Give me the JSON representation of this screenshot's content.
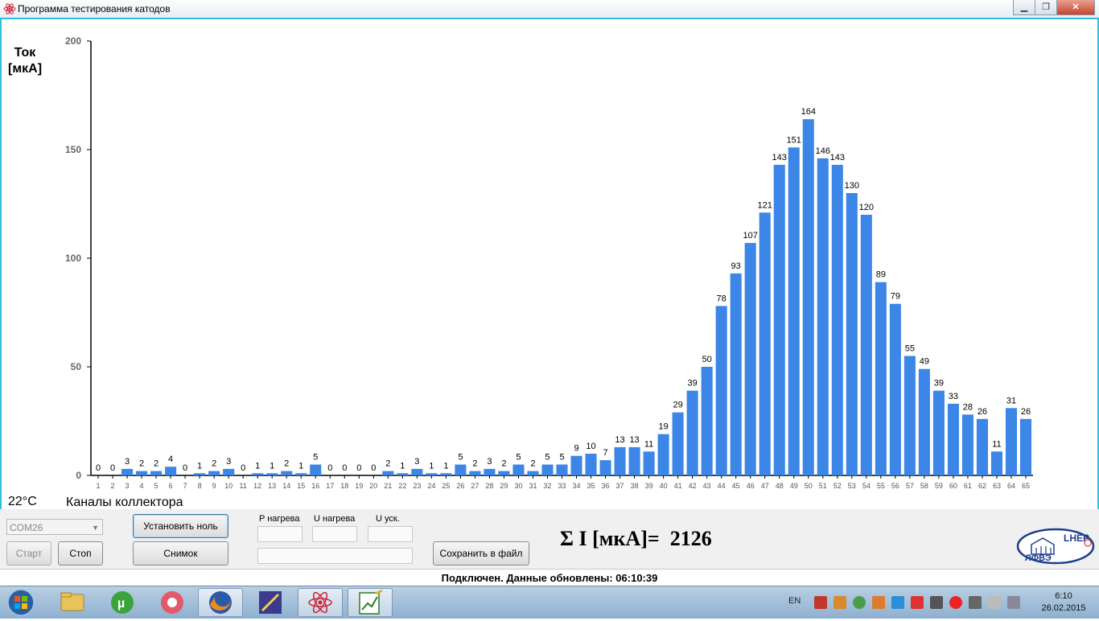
{
  "window": {
    "title": "Программа тестирования катодов",
    "min_label": "▁",
    "max_label": "❐",
    "close_label": "✕"
  },
  "chart_labels": {
    "y_label_line1": "Ток",
    "y_label_line2": "[мкА]",
    "x_label": "Каналы коллектора",
    "temperature": "22°C"
  },
  "chart_data": {
    "type": "bar",
    "ylabel": "Ток [мкА]",
    "xlabel": "Каналы коллектора",
    "ylim": [
      0,
      200
    ],
    "yticks": [
      0,
      50,
      100,
      150,
      200
    ],
    "grid": false,
    "bar_color": "#3b86e6",
    "categories": [
      "1",
      "2",
      "3",
      "4",
      "5",
      "6",
      "7",
      "8",
      "9",
      "10",
      "11",
      "12",
      "13",
      "14",
      "15",
      "16",
      "17",
      "18",
      "19",
      "20",
      "21",
      "22",
      "23",
      "24",
      "25",
      "26",
      "27",
      "28",
      "29",
      "30",
      "31",
      "32",
      "33",
      "34",
      "35",
      "36",
      "37",
      "38",
      "39",
      "40",
      "41",
      "42",
      "43",
      "44",
      "45",
      "46",
      "47",
      "48",
      "49",
      "50",
      "51",
      "52",
      "53",
      "54",
      "55",
      "56",
      "57",
      "58",
      "59",
      "60",
      "61",
      "62",
      "63",
      "64",
      "65"
    ],
    "values": [
      0,
      0,
      3,
      2,
      2,
      4,
      0,
      1,
      2,
      3,
      0,
      1,
      1,
      2,
      1,
      5,
      0,
      0,
      0,
      0,
      2,
      1,
      3,
      1,
      1,
      5,
      2,
      3,
      2,
      5,
      2,
      5,
      5,
      9,
      10,
      7,
      13,
      13,
      11,
      19,
      29,
      39,
      50,
      78,
      93,
      107,
      121,
      143,
      151,
      164,
      146,
      143,
      130,
      120,
      89,
      79,
      55,
      49,
      39,
      33,
      28,
      26,
      11,
      31,
      26
    ]
  },
  "controls": {
    "port_value": "COM26",
    "start_label": "Старт",
    "stop_label": "Стоп",
    "set_zero_label": "Установить ноль",
    "snapshot_label": "Снимок",
    "p_heat_label": "P нагрева",
    "u_heat_label": "U нагрева",
    "u_acc_label": "U уск.",
    "save_label": "Сохранить в файл",
    "sum_text": "Σ I [мкА]=  2126"
  },
  "logo": {
    "top_text": "LHEP",
    "bottom_text": "ЛФВЭ"
  },
  "status": {
    "text": "Подключен. Данные обновлены:  06:10:39"
  },
  "taskbar": {
    "lang": "EN",
    "time": "6:10",
    "date": "26.02.2015",
    "apps": [
      "explorer-icon",
      "utorrent-icon",
      "itunes-icon",
      "firefox-icon",
      "editor-icon",
      "cathode-app-icon",
      "chart-app-icon"
    ],
    "colors": {
      "taskbar": "#a9c4dd",
      "bar": "#3b86e6",
      "frame": "#2fc0e0"
    }
  }
}
